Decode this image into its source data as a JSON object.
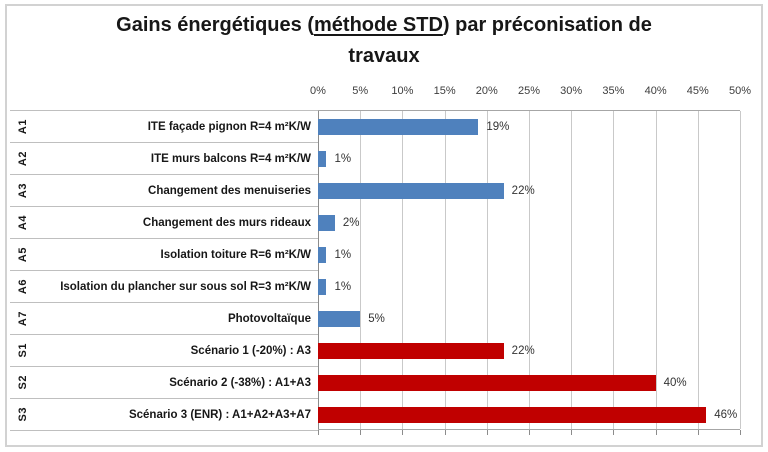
{
  "title": {
    "line1_prefix": "Gains énergétiques (",
    "line1_underlined": "méthode STD",
    "line1_suffix": ") par préconisation de",
    "line2": "travaux"
  },
  "chart_data": {
    "type": "bar",
    "orientation": "horizontal",
    "title": "Gains énergétiques (méthode STD) par préconisation de travaux",
    "value_axis": {
      "position": "top",
      "min": 0,
      "max": 50,
      "step": 5,
      "unit": "%",
      "tick_labels": [
        "0%",
        "5%",
        "10%",
        "15%",
        "20%",
        "25%",
        "30%",
        "35%",
        "40%",
        "45%",
        "50%"
      ],
      "grid": true
    },
    "rows": [
      {
        "code": "A1",
        "label": "ITE façade pignon R=4 m²K/W",
        "value": 19,
        "value_label": "19%",
        "group": "action"
      },
      {
        "code": "A2",
        "label": "ITE murs balcons R=4 m²K/W",
        "value": 1,
        "value_label": "1%",
        "group": "action"
      },
      {
        "code": "A3",
        "label": "Changement des menuiseries",
        "value": 22,
        "value_label": "22%",
        "group": "action"
      },
      {
        "code": "A4",
        "label": "Changement des murs rideaux",
        "value": 2,
        "value_label": "2%",
        "group": "action"
      },
      {
        "code": "A5",
        "label": "Isolation toiture R=6 m²K/W",
        "value": 1,
        "value_label": "1%",
        "group": "action"
      },
      {
        "code": "A6",
        "label": "Isolation du plancher sur sous sol R=3 m²K/W",
        "value": 1,
        "value_label": "1%",
        "group": "action"
      },
      {
        "code": "A7",
        "label": "Photovoltaïque",
        "value": 5,
        "value_label": "5%",
        "group": "action"
      },
      {
        "code": "S1",
        "label": "Scénario 1 (-20%) : A3",
        "value": 22,
        "value_label": "22%",
        "group": "scenario"
      },
      {
        "code": "S2",
        "label": "Scénario 2 (-38%) : A1+A3",
        "value": 40,
        "value_label": "40%",
        "group": "scenario"
      },
      {
        "code": "S3",
        "label": "Scénario 3 (ENR) : A1+A2+A3+A7",
        "value": 46,
        "value_label": "46%",
        "group": "scenario"
      }
    ],
    "colors": {
      "action": "#4F81BD",
      "scenario": "#C00000"
    }
  }
}
